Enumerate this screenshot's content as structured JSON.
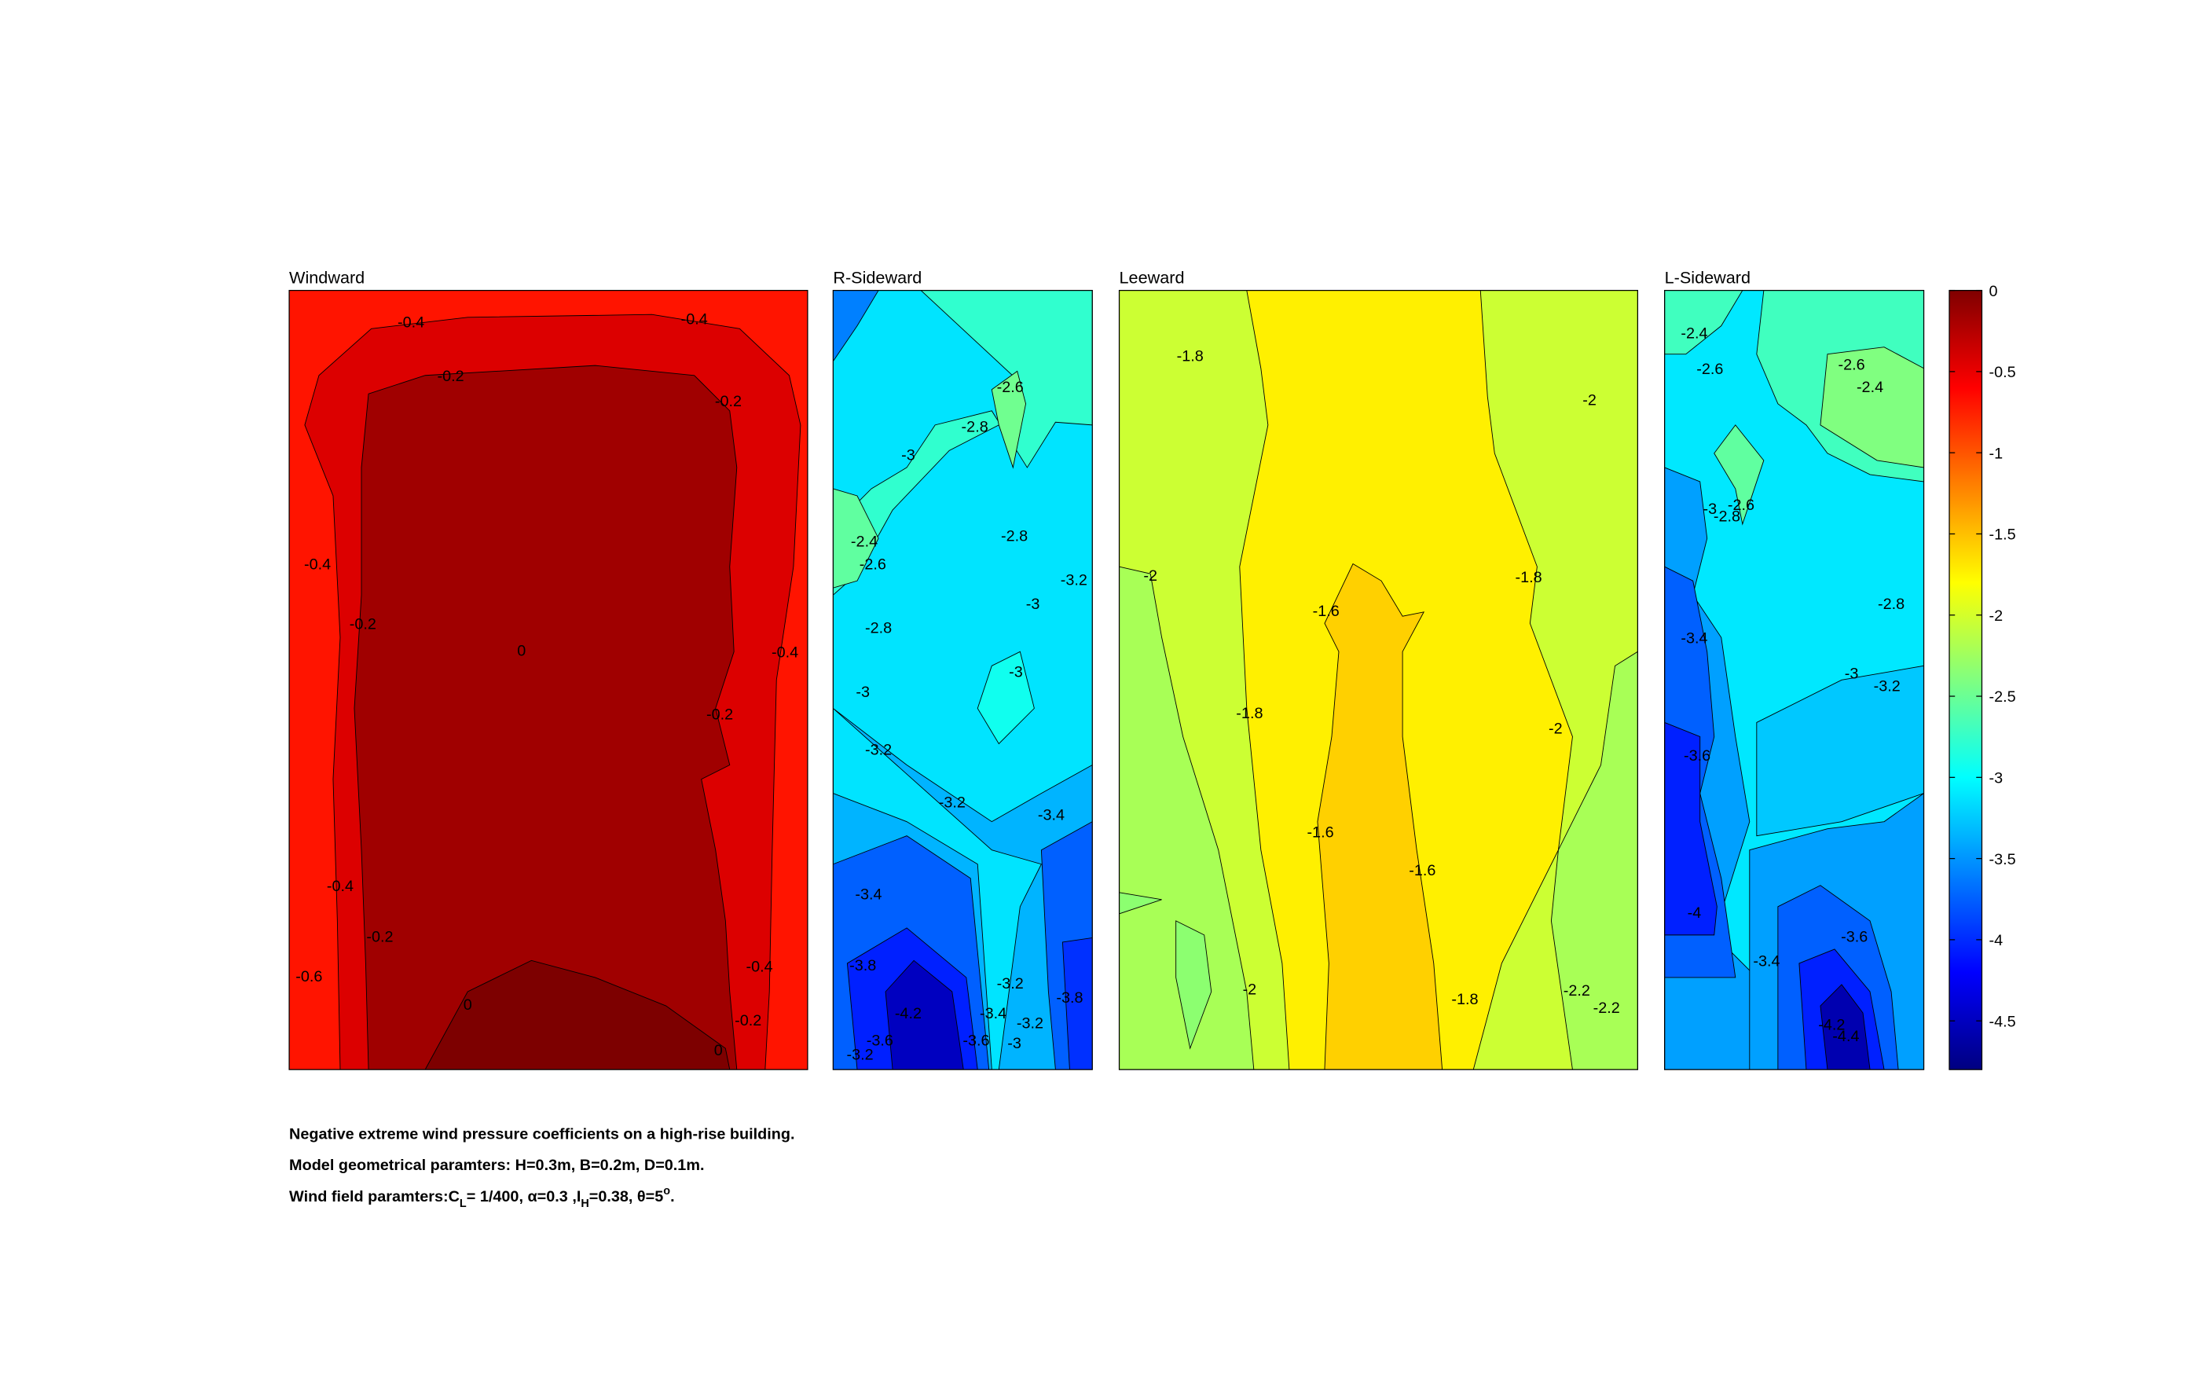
{
  "chart_data": {
    "type": "contour",
    "panels": [
      {
        "title": "Windward",
        "contour_labels": [
          -0.4,
          -0.4,
          -0.2,
          -0.2,
          -0.4,
          -0.2,
          0,
          -0.4,
          -0.2,
          -0.4,
          -0.2,
          -0.6,
          -0.4,
          0,
          -0.2,
          0
        ]
      },
      {
        "title": "R-Sideward",
        "contour_labels": [
          -2.6,
          -2.8,
          -3,
          -2.4,
          -2.6,
          -2.8,
          -3.2,
          -3,
          -2.8,
          -3,
          -3,
          -3.2,
          -3.2,
          -3.4,
          -3.4,
          -3.8,
          -3.2,
          -4.2,
          -3.4,
          -3.2,
          -3.8,
          -3.6,
          -3,
          -3.6,
          -3.2
        ]
      },
      {
        "title": "Leeward",
        "contour_labels": [
          -1.8,
          -2,
          -2,
          -1.8,
          -1.6,
          -1.8,
          -2,
          -1.6,
          -1.6,
          -2,
          -1.8,
          -2.2,
          -2.2
        ]
      },
      {
        "title": "L-Sideward",
        "contour_labels": [
          -2.4,
          -2.6,
          -2.6,
          -2.4,
          -3,
          -2.6,
          -2.8,
          -3.4,
          -2.8,
          -3,
          -3.2,
          -3.6,
          -4,
          -3.4,
          -3.6,
          -4.2,
          -4.4
        ]
      }
    ],
    "colorbar": {
      "colormap": "jet",
      "ylim": [
        -4.8,
        0
      ],
      "yticks": [
        0,
        -0.5,
        -1,
        -1.5,
        -2,
        -2.5,
        -3,
        -3.5,
        -4,
        -4.5
      ]
    },
    "notes": [
      "Negative extreme wind pressure coefficients on a high-rise building.",
      "Model geometrical paramters: H=0.3m, B=0.2m, D=0.1m."
    ],
    "note_parts": [
      "Wind field paramters:C",
      "L",
      "= 1/400, α=0.3 ,I",
      "H",
      "=0.38, θ=5",
      "o",
      "."
    ]
  }
}
